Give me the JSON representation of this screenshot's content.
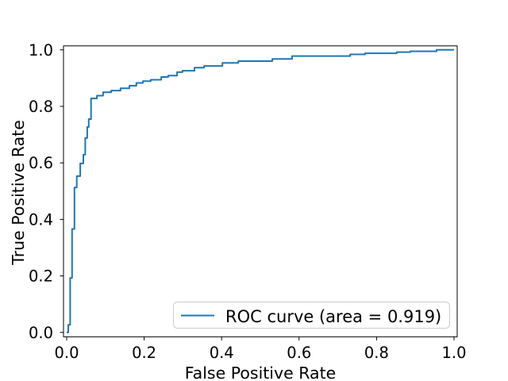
{
  "figure": {
    "background_color": "#ffffff",
    "spine_color": "#000000"
  },
  "chart_data": {
    "type": "line",
    "subtype": "roc-step-curve",
    "title": "",
    "xlabel": "False Positive Rate",
    "ylabel": "True Positive Rate",
    "xlim": [
      0.0,
      1.0
    ],
    "ylim": [
      0.0,
      1.0
    ],
    "grid": false,
    "x_tick_labels": [
      "0.0",
      "0.2",
      "0.4",
      "0.6",
      "0.8",
      "1.0"
    ],
    "y_tick_labels": [
      "0.0",
      "0.2",
      "0.4",
      "0.6",
      "0.8",
      "1.0"
    ],
    "auc": 0.919,
    "legend": {
      "position": "lower right",
      "border_color": "#cccccc",
      "background_color": "#ffffff",
      "entries": [
        {
          "label": "ROC curve (area = 0.919)",
          "color": "#1f77b4",
          "line_style": "solid"
        }
      ]
    },
    "series": [
      {
        "name": "ROC curve",
        "color": "#1f77b4",
        "line_width": 2,
        "points": [
          [
            0.0,
            0.0
          ],
          [
            0.004,
            0.0
          ],
          [
            0.004,
            0.027
          ],
          [
            0.009,
            0.027
          ],
          [
            0.009,
            0.193
          ],
          [
            0.014,
            0.193
          ],
          [
            0.014,
            0.366
          ],
          [
            0.02,
            0.366
          ],
          [
            0.02,
            0.513
          ],
          [
            0.026,
            0.513
          ],
          [
            0.026,
            0.553
          ],
          [
            0.035,
            0.553
          ],
          [
            0.035,
            0.598
          ],
          [
            0.043,
            0.598
          ],
          [
            0.043,
            0.629
          ],
          [
            0.048,
            0.629
          ],
          [
            0.048,
            0.688
          ],
          [
            0.053,
            0.688
          ],
          [
            0.053,
            0.727
          ],
          [
            0.057,
            0.727
          ],
          [
            0.057,
            0.755
          ],
          [
            0.063,
            0.755
          ],
          [
            0.063,
            0.828
          ],
          [
            0.078,
            0.828
          ],
          [
            0.078,
            0.838
          ],
          [
            0.094,
            0.838
          ],
          [
            0.094,
            0.85
          ],
          [
            0.115,
            0.85
          ],
          [
            0.115,
            0.856
          ],
          [
            0.139,
            0.856
          ],
          [
            0.139,
            0.864
          ],
          [
            0.162,
            0.864
          ],
          [
            0.162,
            0.873
          ],
          [
            0.18,
            0.873
          ],
          [
            0.18,
            0.883
          ],
          [
            0.197,
            0.883
          ],
          [
            0.197,
            0.889
          ],
          [
            0.217,
            0.889
          ],
          [
            0.217,
            0.894
          ],
          [
            0.244,
            0.894
          ],
          [
            0.244,
            0.904
          ],
          [
            0.262,
            0.904
          ],
          [
            0.262,
            0.909
          ],
          [
            0.285,
            0.909
          ],
          [
            0.285,
            0.921
          ],
          [
            0.299,
            0.921
          ],
          [
            0.299,
            0.926
          ],
          [
            0.33,
            0.926
          ],
          [
            0.33,
            0.937
          ],
          [
            0.355,
            0.937
          ],
          [
            0.355,
            0.943
          ],
          [
            0.402,
            0.943
          ],
          [
            0.402,
            0.954
          ],
          [
            0.443,
            0.954
          ],
          [
            0.443,
            0.96
          ],
          [
            0.531,
            0.96
          ],
          [
            0.531,
            0.968
          ],
          [
            0.582,
            0.968
          ],
          [
            0.582,
            0.978
          ],
          [
            0.732,
            0.978
          ],
          [
            0.732,
            0.984
          ],
          [
            0.77,
            0.984
          ],
          [
            0.77,
            0.988
          ],
          [
            0.852,
            0.988
          ],
          [
            0.852,
            0.992
          ],
          [
            0.887,
            0.992
          ],
          [
            0.887,
            0.995
          ],
          [
            0.955,
            0.995
          ],
          [
            0.955,
            1.0
          ],
          [
            1.0,
            1.0
          ]
        ]
      }
    ]
  }
}
